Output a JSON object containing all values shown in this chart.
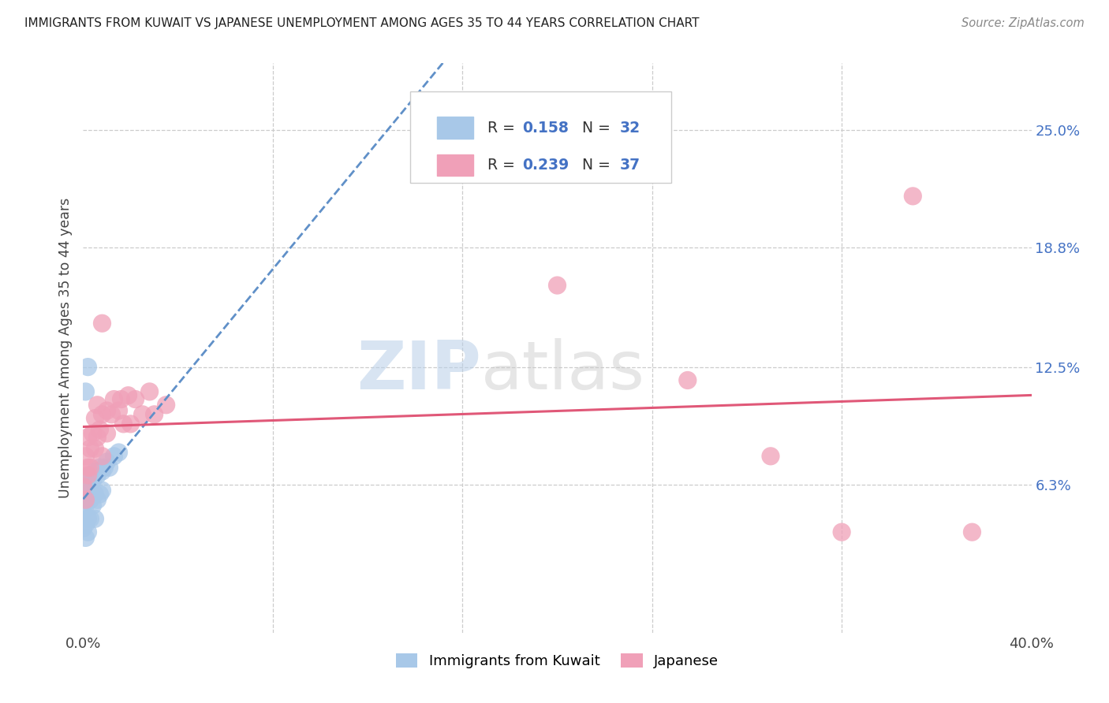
{
  "title": "IMMIGRANTS FROM KUWAIT VS JAPANESE UNEMPLOYMENT AMONG AGES 35 TO 44 YEARS CORRELATION CHART",
  "source": "Source: ZipAtlas.com",
  "ylabel": "Unemployment Among Ages 35 to 44 years",
  "xlim": [
    0.0,
    0.4
  ],
  "ylim": [
    -0.015,
    0.285
  ],
  "ytick_positions": [
    0.063,
    0.125,
    0.188,
    0.25
  ],
  "ytick_labels": [
    "6.3%",
    "12.5%",
    "18.8%",
    "25.0%"
  ],
  "watermark": "ZIPatlas",
  "blue_color": "#a8c8e8",
  "pink_color": "#f0a0b8",
  "blue_line_color": "#6090c8",
  "pink_line_color": "#e05878",
  "legend_text_color": "#4472c4",
  "background_color": "#ffffff",
  "kuwait_x": [
    0.0,
    0.0,
    0.0,
    0.001,
    0.001,
    0.001,
    0.001,
    0.002,
    0.002,
    0.002,
    0.002,
    0.003,
    0.003,
    0.003,
    0.004,
    0.004,
    0.005,
    0.005,
    0.005,
    0.006,
    0.006,
    0.007,
    0.007,
    0.008,
    0.008,
    0.009,
    0.01,
    0.011,
    0.013,
    0.015,
    0.001,
    0.002
  ],
  "kuwait_y": [
    0.058,
    0.048,
    0.04,
    0.062,
    0.052,
    0.042,
    0.035,
    0.065,
    0.055,
    0.045,
    0.038,
    0.068,
    0.055,
    0.045,
    0.065,
    0.052,
    0.07,
    0.058,
    0.045,
    0.068,
    0.055,
    0.072,
    0.058,
    0.07,
    0.06,
    0.072,
    0.075,
    0.072,
    0.078,
    0.08,
    0.112,
    0.125
  ],
  "japanese_x": [
    0.0,
    0.001,
    0.001,
    0.002,
    0.002,
    0.002,
    0.003,
    0.003,
    0.004,
    0.005,
    0.005,
    0.006,
    0.006,
    0.007,
    0.008,
    0.008,
    0.01,
    0.01,
    0.012,
    0.013,
    0.015,
    0.016,
    0.017,
    0.019,
    0.02,
    0.022,
    0.025,
    0.028,
    0.03,
    0.035,
    0.2,
    0.255,
    0.29,
    0.32,
    0.35,
    0.375,
    0.008
  ],
  "japanese_y": [
    0.062,
    0.055,
    0.078,
    0.068,
    0.088,
    0.072,
    0.082,
    0.072,
    0.09,
    0.098,
    0.082,
    0.105,
    0.088,
    0.092,
    0.1,
    0.078,
    0.102,
    0.09,
    0.1,
    0.108,
    0.102,
    0.108,
    0.095,
    0.11,
    0.095,
    0.108,
    0.1,
    0.112,
    0.1,
    0.105,
    0.168,
    0.118,
    0.078,
    0.038,
    0.215,
    0.038,
    0.148
  ]
}
